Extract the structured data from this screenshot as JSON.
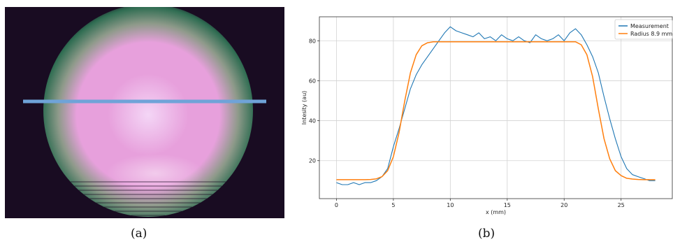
{
  "figure": {
    "caption_a": "(a)",
    "caption_b": "(b)"
  },
  "beam_image": {
    "colors": {
      "background": "#190c22",
      "core": "#e7a0dc",
      "highlight": "#f4d6f6",
      "mid": "#8e9a8a",
      "edge": "#2f6d52",
      "line_profile": "#6fa3d8"
    }
  },
  "chart_data": {
    "type": "line",
    "xlabel": "x (mm)",
    "ylabel": "Intesity (au)",
    "xlim": [
      -1.5,
      29.5
    ],
    "ylim": [
      1,
      92
    ],
    "xticks": [
      0,
      5,
      10,
      15,
      20,
      25
    ],
    "yticks": [
      20,
      40,
      60,
      80
    ],
    "grid": true,
    "legend_position": "top-right",
    "series": [
      {
        "name": "Measurement",
        "color": "#1f77b4",
        "x": [
          0,
          0.5,
          1,
          1.5,
          2,
          2.5,
          3,
          3.5,
          4,
          4.5,
          5,
          5.5,
          6,
          6.5,
          7,
          7.5,
          8,
          8.5,
          9,
          9.5,
          10,
          10.5,
          11,
          11.5,
          12,
          12.5,
          13,
          13.5,
          14,
          14.5,
          15,
          15.5,
          16,
          16.5,
          17,
          17.5,
          18,
          18.5,
          19,
          19.5,
          20,
          20.5,
          21,
          21.5,
          22,
          22.5,
          23,
          23.5,
          24,
          24.5,
          25,
          25.5,
          26,
          26.5,
          27,
          27.5,
          28
        ],
        "y": [
          9,
          8,
          8,
          9,
          8,
          9,
          9,
          10,
          12,
          16,
          27,
          36,
          46,
          56,
          63,
          68,
          72,
          76,
          80,
          84,
          87,
          85,
          84,
          83,
          82,
          84,
          81,
          82,
          80,
          83,
          81,
          80,
          82,
          80,
          79,
          83,
          81,
          80,
          81,
          83,
          80,
          84,
          86,
          83,
          78,
          72,
          64,
          52,
          41,
          31,
          22,
          16,
          13,
          12,
          11,
          10,
          10
        ]
      },
      {
        "name": "Radius 8.9 mm",
        "color": "#ff7f0e",
        "x": [
          0,
          0.5,
          1,
          1.5,
          2,
          2.5,
          3,
          3.5,
          4,
          4.5,
          5,
          5.5,
          6,
          6.5,
          7,
          7.5,
          8,
          8.5,
          9,
          9.5,
          10,
          10.5,
          11,
          11.5,
          12,
          12.5,
          13,
          13.5,
          14,
          14.5,
          15,
          15.5,
          16,
          16.5,
          17,
          17.5,
          18,
          18.5,
          19,
          19.5,
          20,
          20.5,
          21,
          21.5,
          22,
          22.5,
          23,
          23.5,
          24,
          24.5,
          25,
          25.5,
          26,
          26.5,
          27,
          27.5,
          28
        ],
        "y": [
          10.5,
          10.5,
          10.5,
          10.5,
          10.5,
          10.5,
          10.6,
          10.9,
          12,
          15,
          22,
          34,
          50,
          64,
          73,
          77.5,
          79,
          79.5,
          79.5,
          79.5,
          79.5,
          79.5,
          79.5,
          79.5,
          79.5,
          79.5,
          79.5,
          79.5,
          79.5,
          79.5,
          79.5,
          79.5,
          79.5,
          79.5,
          79.5,
          79.5,
          79.5,
          79.5,
          79.5,
          79.5,
          79.5,
          79.5,
          79.5,
          78,
          73,
          62,
          46,
          31,
          21,
          15,
          12.5,
          11.2,
          10.8,
          10.6,
          10.5,
          10.5,
          10.5
        ]
      }
    ]
  }
}
